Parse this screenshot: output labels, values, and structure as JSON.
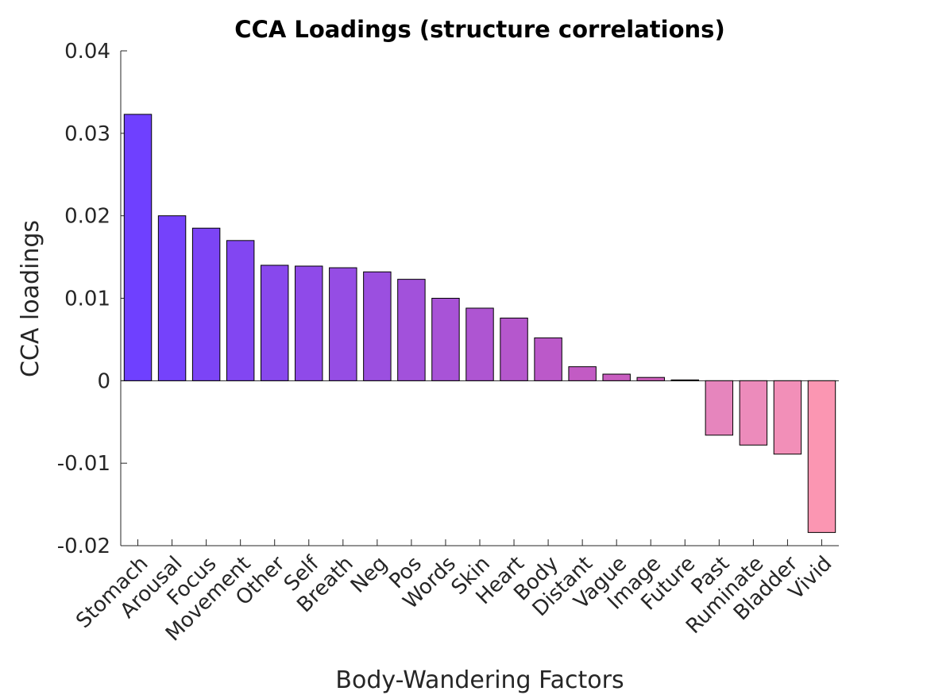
{
  "chart_data": {
    "type": "bar",
    "title": "CCA Loadings (structure correlations)",
    "xlabel": "Body-Wandering Factors",
    "ylabel": "CCA loadings",
    "ylim": [
      -0.02,
      0.04
    ],
    "yticks": [
      0.04,
      0.03,
      0.02,
      0.01,
      0,
      -0.01,
      -0.02
    ],
    "ytick_labels": [
      "0.04",
      "0.03",
      "0.02",
      "0.01",
      "0",
      "-0.01",
      "-0.02"
    ],
    "grid": false,
    "legend": "none",
    "categories": [
      "Stomach",
      "Arousal",
      "Focus",
      "Movement",
      "Other",
      "Self",
      "Breath",
      "Neg",
      "Pos",
      "Words",
      "Skin",
      "Heart",
      "Body",
      "Distant",
      "Vague",
      "Image",
      "Future",
      "Past",
      "Ruminate",
      "Bladder",
      "Vivid"
    ],
    "values": [
      0.0323,
      0.02,
      0.0185,
      0.017,
      0.014,
      0.0139,
      0.0137,
      0.0132,
      0.0123,
      0.01,
      0.0088,
      0.0076,
      0.0052,
      0.0017,
      0.0008,
      0.0004,
      0.0001,
      -0.0066,
      -0.0078,
      -0.0089,
      -0.0184
    ],
    "colors": [
      "#6f40ff",
      "#7542fb",
      "#7c44f6",
      "#8246f2",
      "#8848ed",
      "#8f4ae9",
      "#954de4",
      "#9b4fe0",
      "#a251db",
      "#a853d7",
      "#ae55d2",
      "#b557cd",
      "#bb59c9",
      "#c25bc4",
      "#c85dc0",
      "#ce5fbb",
      "#e07fc0",
      "#e685bd",
      "#ec8bbb",
      "#f28fb8",
      "#fb96b2"
    ]
  }
}
